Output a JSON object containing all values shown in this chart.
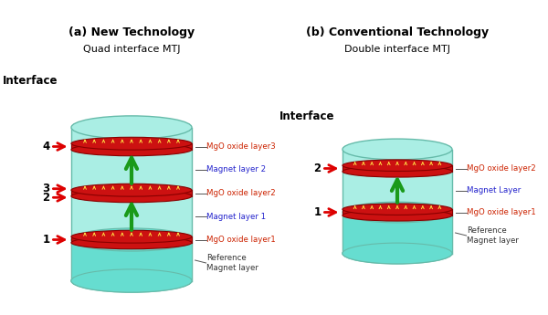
{
  "title_a": "(a) New Technology",
  "subtitle_a": "Quad interface MTJ",
  "title_b": "(b) Conventional Technology",
  "subtitle_b": "Double interface MTJ",
  "bg_color": "#ffffff",
  "cyl_fill": "#aaeee4",
  "cyl_edge": "#66bbaa",
  "ref_fill": "#66ddd0",
  "mgo_fill": "#cc1111",
  "mgo_edge": "#880000",
  "arrow_green": "#1a9a1a",
  "arrow_red": "#dd0000",
  "label_mgo": "#cc2200",
  "label_magnet": "#2222cc",
  "label_ref": "#333333"
}
